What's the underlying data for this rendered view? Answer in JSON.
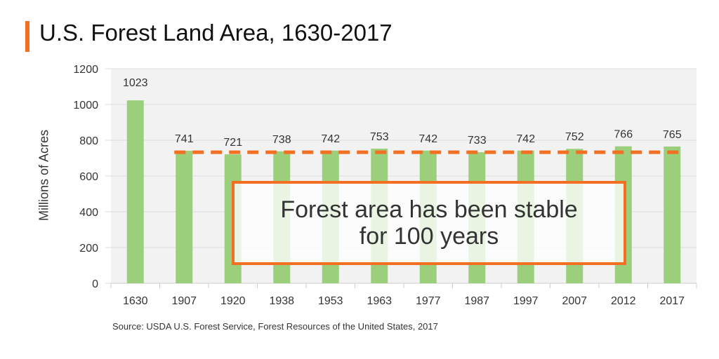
{
  "title": "U.S. Forest Land Area, 1630-2017",
  "source": "Source: USDA U.S. Forest Service, Forest Resources of the United States, 2017",
  "callout": {
    "line1": "Forest area has been stable",
    "line2": "for 100 years"
  },
  "colors": {
    "bar": "#9bcf7c",
    "accent": "#f36f21",
    "plot_bg": "#f2f2f2"
  },
  "chart_data": {
    "type": "bar",
    "title": "U.S. Forest Land Area, 1630-2017",
    "xlabel": "",
    "ylabel": "Millions of Acres",
    "categories": [
      "1630",
      "1907",
      "1920",
      "1938",
      "1953",
      "1963",
      "1977",
      "1987",
      "1997",
      "2007",
      "2012",
      "2017"
    ],
    "values": [
      1023,
      741,
      721,
      738,
      742,
      753,
      742,
      733,
      742,
      752,
      766,
      765
    ],
    "ylim": [
      0,
      1200
    ],
    "yticks": [
      0,
      200,
      400,
      600,
      800,
      1000,
      1200
    ],
    "reference_line": {
      "value": 733,
      "style": "dashed",
      "x_from": "1907",
      "x_to": "2017"
    },
    "grid": true
  }
}
